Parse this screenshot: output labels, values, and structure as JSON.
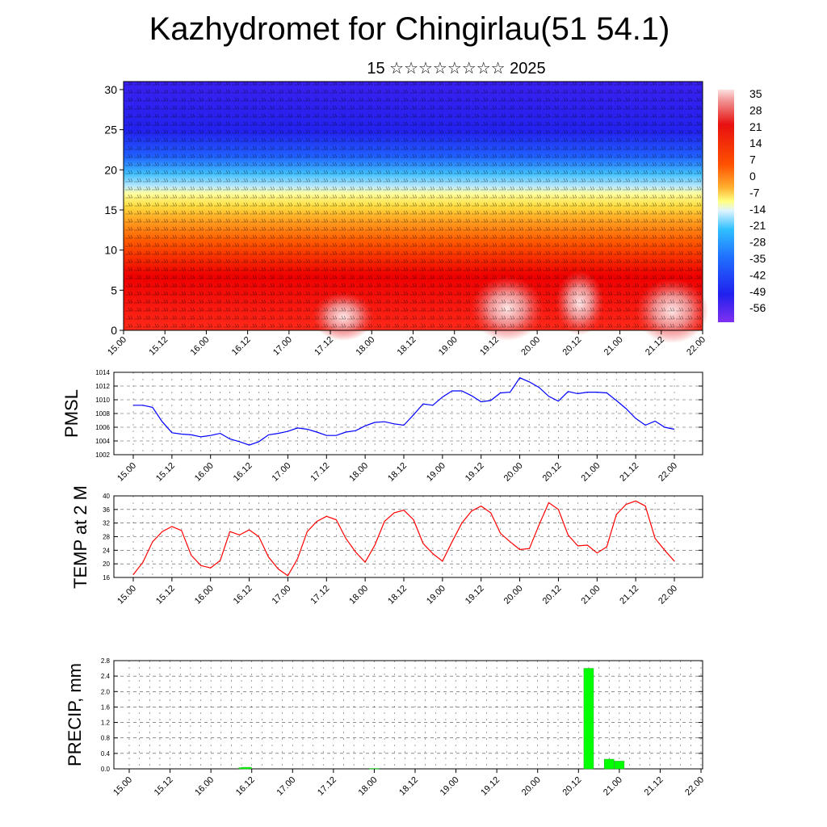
{
  "title": "Kazhydromet for Chingirlau(51 54.1)",
  "subtitle": "15 ☆☆☆☆☆☆☆☆ 2025",
  "time_labels": [
    "15.00",
    "15.12",
    "16.00",
    "16.12",
    "17.00",
    "17.12",
    "18.00",
    "18.12",
    "19.00",
    "19.12",
    "20.00",
    "20.12",
    "21.00",
    "21.12",
    "22.00"
  ],
  "colors": {
    "pmsl_line": "#0000ff",
    "temp_line": "#ff0000",
    "precip_bar": "#00ff00",
    "axis": "#000000"
  },
  "chart_data": [
    {
      "type": "heatmap",
      "title": "Kazhydromet for Chingirlau(51 54.1)",
      "subtitle": "15 ☆☆☆☆☆☆☆☆ 2025",
      "y_ticks": [
        0,
        5,
        10,
        15,
        20,
        25,
        30
      ],
      "ylim": [
        0,
        31
      ],
      "x_categories": [
        "15.00",
        "15.12",
        "16.00",
        "16.12",
        "17.00",
        "17.12",
        "18.00",
        "18.12",
        "19.00",
        "19.12",
        "20.00",
        "20.12",
        "21.00",
        "21.12",
        "22.00"
      ],
      "colorbar_labels": [
        "35",
        "28",
        "21",
        "14",
        "7",
        "0",
        "-7",
        "-14",
        "-21",
        "-28",
        "-35",
        "-42",
        "-49",
        "-56"
      ],
      "overlay": "wind barbs"
    },
    {
      "type": "line",
      "ylabel": "PMSL",
      "y_ticks": [
        1002,
        1004,
        1006,
        1008,
        1010,
        1012,
        1014
      ],
      "ylim": [
        1002,
        1014
      ],
      "series": [
        {
          "values": [
            1009.2,
            1009.2,
            1008.9,
            1006.8,
            1005.2,
            1005.0,
            1004.9,
            1004.6,
            1004.8,
            1005.1,
            1004.3,
            1003.9,
            1003.4,
            1003.9,
            1004.9,
            1005.1,
            1005.4,
            1005.9,
            1005.7,
            1005.3,
            1004.8,
            1004.8,
            1005.3,
            1005.5,
            1006.2,
            1006.7,
            1006.8,
            1006.5,
            1006.3,
            1007.8,
            1009.4,
            1009.2,
            1010.4,
            1011.3,
            1011.3,
            1010.6,
            1009.7,
            1009.9,
            1011.0,
            1011.1,
            1013.2,
            1012.6,
            1011.8,
            1010.5,
            1009.8,
            1011.2,
            1010.9,
            1011.1,
            1011.1,
            1011.0,
            1009.9,
            1008.7,
            1007.3,
            1006.3,
            1006.9,
            1006.0,
            1005.7
          ]
        }
      ]
    },
    {
      "type": "line",
      "ylabel": "TEMP at 2 M",
      "y_ticks": [
        16,
        20,
        24,
        28,
        32,
        36,
        40
      ],
      "ylim": [
        16,
        40
      ],
      "series": [
        {
          "values": [
            16.8,
            20.5,
            26.5,
            29.5,
            31.0,
            29.8,
            22.5,
            19.5,
            18.8,
            21.0,
            29.5,
            28.5,
            30.0,
            28.0,
            22.0,
            18.5,
            16.5,
            21.5,
            29.5,
            32.5,
            34.0,
            33.0,
            27.5,
            23.5,
            20.5,
            25.5,
            32.5,
            35.0,
            35.8,
            33.0,
            26.0,
            23.0,
            20.8,
            26.5,
            32.0,
            35.5,
            37.0,
            35.0,
            29.0,
            26.5,
            24.2,
            24.5,
            31.5,
            38.0,
            36.0,
            28.5,
            25.3,
            25.5,
            23.2,
            25.0,
            34.5,
            37.5,
            38.5,
            37.0,
            27.5,
            24.0,
            20.8
          ]
        }
      ]
    },
    {
      "type": "bar",
      "ylabel": "PRECIP, mm",
      "y_ticks": [
        "0.0",
        "0.4",
        "0.8",
        "1.2",
        "1.6",
        "2.0",
        "2.4",
        "2.8"
      ],
      "ylim": [
        0,
        2.8
      ],
      "bars": [
        {
          "t": 11.2,
          "value": 0.03
        },
        {
          "t": 11.5,
          "value": 0.04
        },
        {
          "t": 24.0,
          "value": 0.01
        },
        {
          "t": 45.0,
          "value": 2.6
        },
        {
          "t": 47.0,
          "value": 0.25
        },
        {
          "t": 48.0,
          "value": 0.2
        }
      ]
    }
  ]
}
